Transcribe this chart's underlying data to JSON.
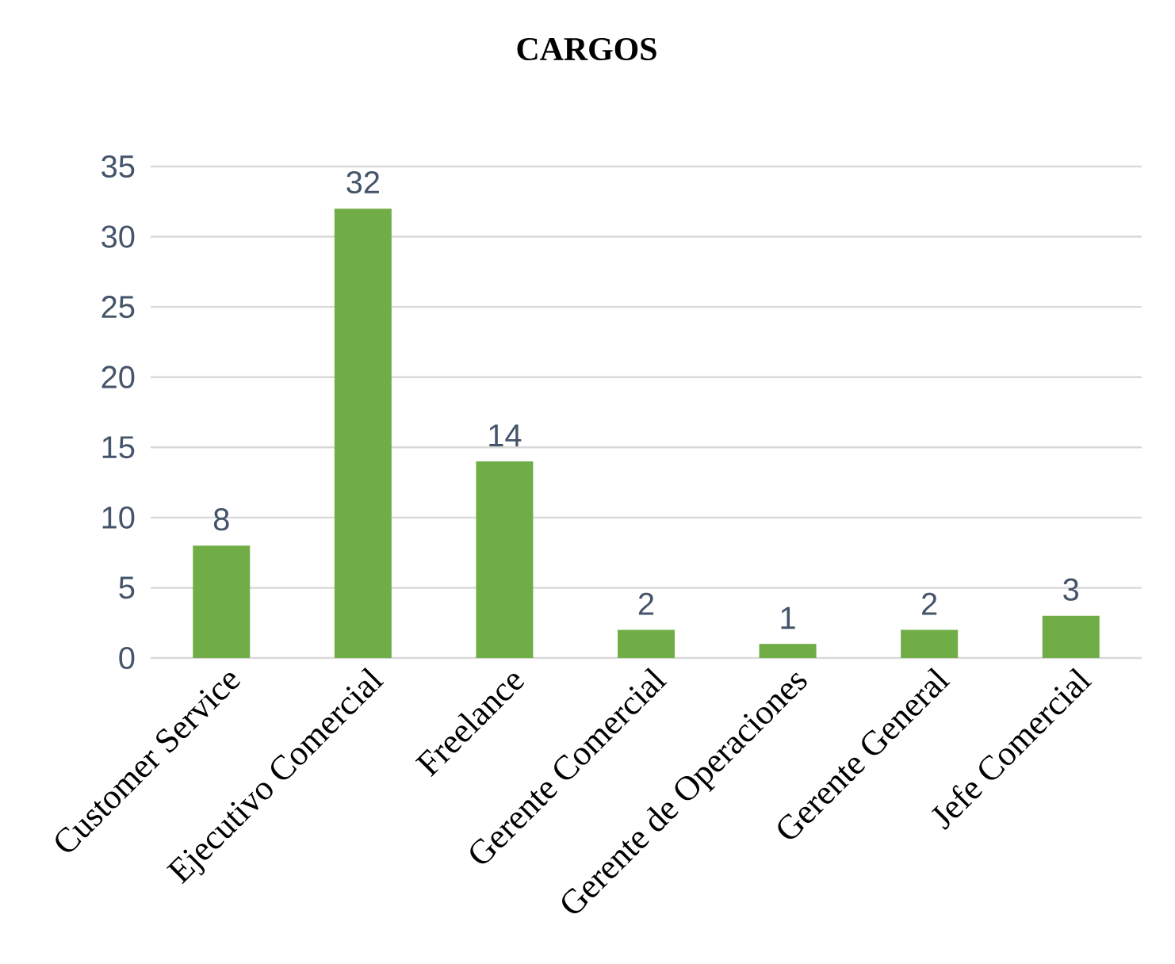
{
  "chart_data": {
    "type": "bar",
    "title": "CARGOS",
    "categories": [
      "Customer Service",
      "Ejecutivo Comercial",
      "Freelance",
      "Gerente Comercial",
      "Gerente de Operaciones",
      "Gerente General",
      "Jefe Comercial"
    ],
    "values": [
      8,
      32,
      14,
      2,
      1,
      2,
      3
    ],
    "color": "#70ad47",
    "ylim": [
      0,
      35
    ],
    "yticks": [
      0,
      5,
      10,
      15,
      20,
      25,
      30,
      35
    ],
    "grid": "y",
    "data_labels": true
  }
}
